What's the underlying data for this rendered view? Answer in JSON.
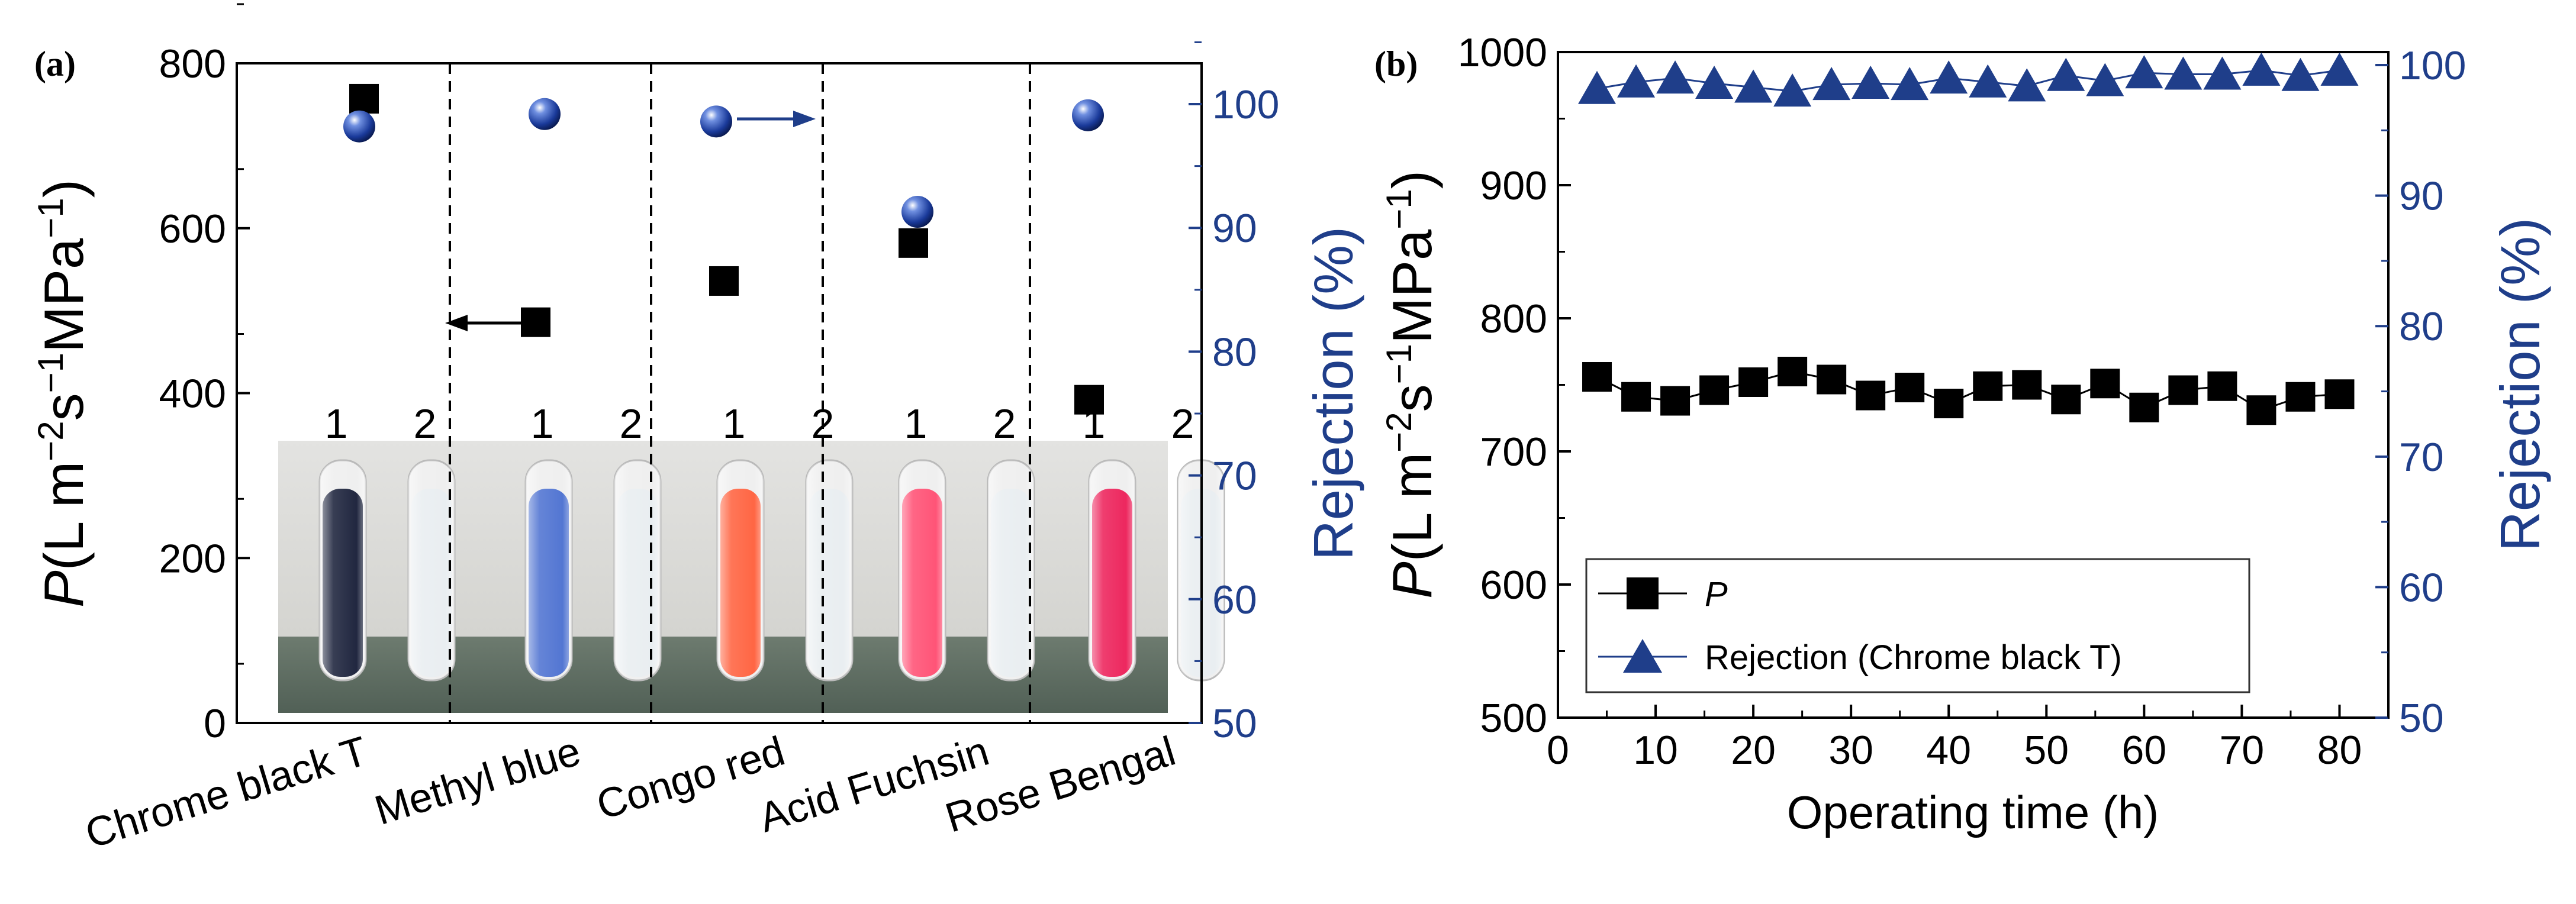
{
  "chart_data": [
    {
      "panel": "(a)",
      "type": "scatter",
      "categories": [
        "Chrome black T",
        "Methyl blue",
        "Congo red",
        "Acid Fuchsin",
        "Rose Bengal"
      ],
      "series": [
        {
          "name": "P",
          "axis": "left",
          "marker": "square",
          "color": "#000000",
          "values": [
            757,
            486,
            536,
            582,
            392
          ]
        },
        {
          "name": "Rejection",
          "axis": "right",
          "marker": "sphere",
          "color": "#1f3e8a",
          "values": [
            98.2,
            99.2,
            98.6,
            91.3,
            99.1
          ]
        }
      ],
      "ylabel": "P(L m−2s−1MPa−1)",
      "ylabel_parts": {
        "italic": "P",
        "base": "(L m",
        "exp1": "−2",
        "mid": "s",
        "exp2": "−1",
        "mid2": "MPa",
        "exp3": "−1",
        "close": ")"
      },
      "y2label": "Rejection (%)",
      "ylim": [
        0,
        800
      ],
      "y2lim": [
        50,
        103.3
      ],
      "yticks": [
        "0",
        "200",
        "400",
        "600",
        "800"
      ],
      "y2ticks": [
        "50",
        "60",
        "70",
        "80",
        "90",
        "100"
      ],
      "tube_labels": [
        "1",
        "2"
      ],
      "tube_colors": [
        "#151c36",
        "#4a6fd0",
        "#ff5e3a",
        "#ff4b70",
        "#ec1c56"
      ]
    },
    {
      "panel": "(b)",
      "type": "line",
      "x": [
        4,
        8,
        12,
        16,
        20,
        24,
        28,
        32,
        36,
        40,
        44,
        48,
        52,
        56,
        60,
        64,
        68,
        72,
        76,
        80
      ],
      "series": [
        {
          "name": "P",
          "axis": "left",
          "marker": "square",
          "color": "#000000",
          "values": [
            756,
            741,
            738,
            746,
            752,
            760,
            754,
            742,
            748,
            736,
            749,
            750,
            739,
            751,
            733,
            746,
            749,
            731,
            741,
            743
          ]
        },
        {
          "name": "Rejection (Chrome black T)",
          "axis": "right",
          "marker": "triangle",
          "color": "#1f3e8a",
          "values": [
            98.2,
            98.7,
            99.0,
            98.6,
            98.3,
            98.0,
            98.5,
            98.6,
            98.5,
            99.0,
            98.7,
            98.4,
            99.2,
            98.8,
            99.4,
            99.3,
            99.3,
            99.6,
            99.2,
            99.6
          ]
        }
      ],
      "xlabel": "Operating time (h)",
      "ylabel": "P(L m−2s−1MPa−1)",
      "y2label": "Rejection (%)",
      "xlim": [
        0,
        85
      ],
      "ylim": [
        500,
        1000
      ],
      "y2lim": [
        50,
        101
      ],
      "xticks": [
        "0",
        "10",
        "20",
        "30",
        "40",
        "50",
        "60",
        "70",
        "80"
      ],
      "yticks": [
        "500",
        "600",
        "700",
        "800",
        "900",
        "1000"
      ],
      "y2ticks": [
        "50",
        "60",
        "70",
        "80",
        "90",
        "100"
      ],
      "legend": {
        "position": "bottom-left",
        "entries": [
          "P",
          "Rejection (Chrome black T)"
        ]
      }
    }
  ]
}
